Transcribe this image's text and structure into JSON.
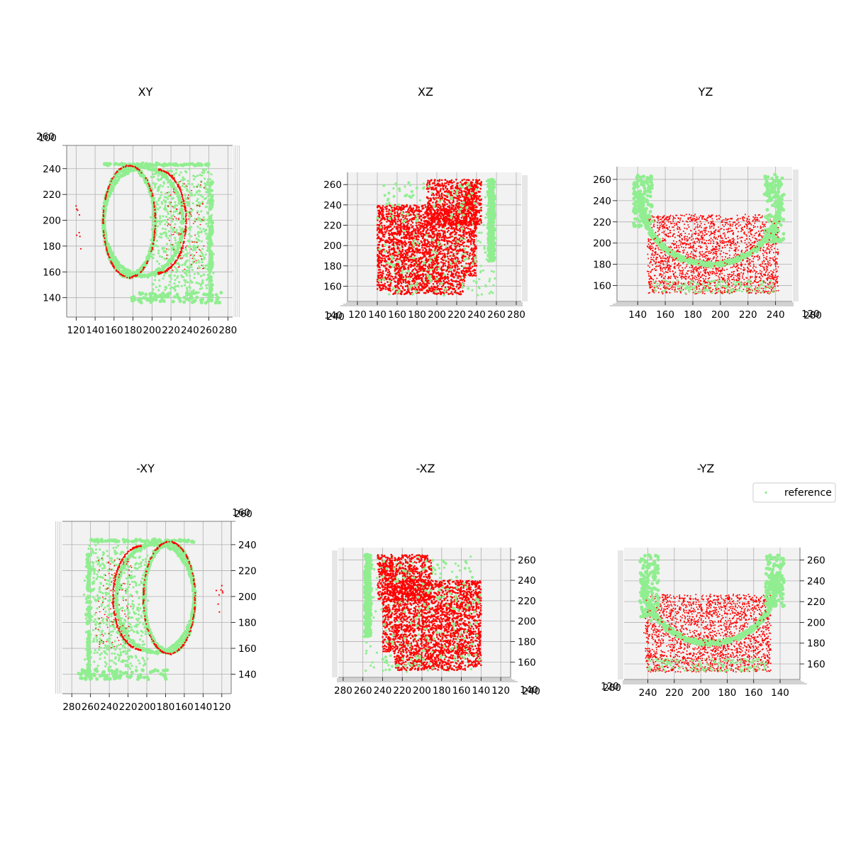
{
  "figure": {
    "legend": {
      "placement": "right-of-bottom-row",
      "entries": [
        {
          "label": "reference",
          "color": "#90ee90"
        }
      ]
    },
    "colors": {
      "reference": "#90ee90",
      "pred": "#ff0000",
      "pane": "#f2f2f2",
      "grid": "#b0b0b0"
    }
  },
  "chart_data": [
    {
      "type": "scatter",
      "title": "XY",
      "view": "top",
      "grid": true,
      "h_axis": {
        "range": [
          110,
          285
        ],
        "ticks": [
          "120",
          "140",
          "160",
          "180",
          "200",
          "220",
          "240",
          "260",
          "280"
        ]
      },
      "v_axis": {
        "range": [
          125,
          258
        ],
        "ticks": [
          "140",
          "160",
          "180",
          "200",
          "220",
          "240"
        ]
      },
      "corner_ticks": [
        "260",
        "100"
      ],
      "series_colors": [
        "#90ee90",
        "#ff0000"
      ]
    },
    {
      "type": "scatter",
      "title": "XZ",
      "view": "front",
      "grid": true,
      "h_axis": {
        "range": [
          110,
          285
        ],
        "ticks": [
          "120",
          "140",
          "160",
          "180",
          "200",
          "220",
          "240",
          "260",
          "280"
        ]
      },
      "v_axis": {
        "range": [
          145,
          272
        ],
        "ticks": [
          "160",
          "180",
          "200",
          "220",
          "240",
          "260"
        ]
      },
      "corner_ticks": [
        "140",
        "240"
      ],
      "series_colors": [
        "#90ee90",
        "#ff0000"
      ]
    },
    {
      "type": "scatter",
      "title": "YZ",
      "view": "side",
      "grid": true,
      "h_axis": {
        "range": [
          125,
          252
        ],
        "ticks": [
          "140",
          "160",
          "180",
          "200",
          "220",
          "240"
        ]
      },
      "v_axis": {
        "range": [
          145,
          272
        ],
        "ticks": [
          "160",
          "180",
          "200",
          "220",
          "240",
          "260"
        ]
      },
      "corner_ticks": [
        "120",
        "280"
      ],
      "series_colors": [
        "#90ee90",
        "#ff0000"
      ]
    },
    {
      "type": "scatter",
      "title": "-XY",
      "view": "bottom",
      "grid": true,
      "h_axis": {
        "range": [
          290,
          110
        ],
        "ticks": [
          "280",
          "260",
          "240",
          "220",
          "200",
          "180",
          "160",
          "140",
          "120"
        ]
      },
      "v_axis": {
        "range": [
          125,
          258
        ],
        "ticks": [
          "140",
          "160",
          "180",
          "200",
          "220",
          "240"
        ]
      },
      "corner_ticks": [
        "160",
        "260"
      ],
      "series_colors": [
        "#90ee90",
        "#ff0000"
      ]
    },
    {
      "type": "scatter",
      "title": "-XZ",
      "view": "back",
      "grid": true,
      "h_axis": {
        "range": [
          285,
          110
        ],
        "ticks": [
          "280",
          "260",
          "240",
          "220",
          "200",
          "180",
          "160",
          "140",
          "120"
        ]
      },
      "v_axis": {
        "range": [
          145,
          272
        ],
        "ticks": [
          "160",
          "180",
          "200",
          "220",
          "240",
          "260"
        ]
      },
      "corner_ticks": [
        "140",
        "240"
      ],
      "series_colors": [
        "#90ee90",
        "#ff0000"
      ]
    },
    {
      "type": "scatter",
      "title": "-YZ",
      "view": "opposite-side",
      "grid": true,
      "h_axis": {
        "range": [
          258,
          125
        ],
        "ticks": [
          "240",
          "220",
          "200",
          "180",
          "160",
          "140"
        ]
      },
      "v_axis": {
        "range": [
          145,
          272
        ],
        "ticks": [
          "160",
          "180",
          "200",
          "220",
          "240",
          "260"
        ]
      },
      "corner_ticks": [
        "120",
        "280"
      ],
      "series_colors": [
        "#90ee90",
        "#ff0000"
      ]
    }
  ]
}
